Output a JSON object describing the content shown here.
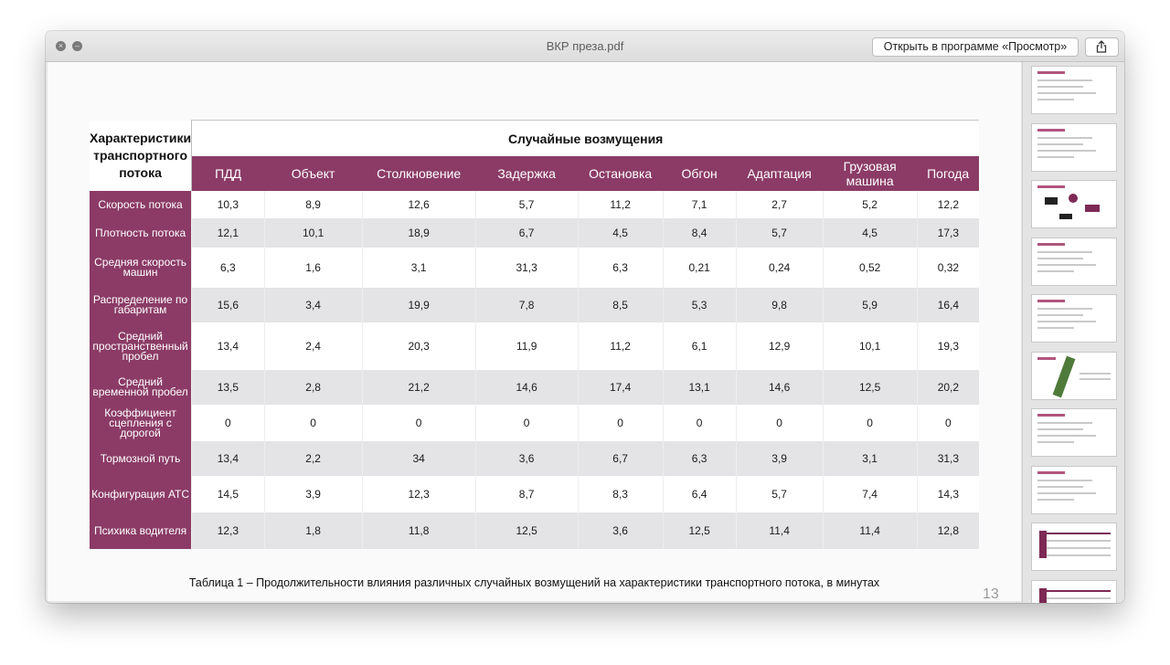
{
  "window": {
    "title": "ВКР преза.pdf",
    "open_button": "Открыть в программе «Просмотр»",
    "close_glyph": "×",
    "min_glyph": "–"
  },
  "slide": {
    "corner_header": "Характеристики транспортного потока",
    "group_header": "Случайные возмущения",
    "columns": [
      "ПДД",
      "Объект",
      "Столкновение",
      "Задержка",
      "Остановка",
      "Обгон",
      "Адаптация",
      "Грузовая машина",
      "Погода"
    ],
    "rows": [
      {
        "label": "Скорость потока",
        "values": [
          "10,3",
          "8,9",
          "12,6",
          "5,7",
          "11,2",
          "7,1",
          "2,7",
          "5,2",
          "12,2"
        ]
      },
      {
        "label": "Плотность потока",
        "values": [
          "12,1",
          "10,1",
          "18,9",
          "6,7",
          "4,5",
          "8,4",
          "5,7",
          "4,5",
          "17,3"
        ]
      },
      {
        "label": "Средняя скорость машин",
        "values": [
          "6,3",
          "1,6",
          "3,1",
          "31,3",
          "6,3",
          "0,21",
          "0,24",
          "0,52",
          "0,32"
        ]
      },
      {
        "label": "Распределение по габаритам",
        "values": [
          "15,6",
          "3,4",
          "19,9",
          "7,8",
          "8,5",
          "5,3",
          "9,8",
          "5,9",
          "16,4"
        ]
      },
      {
        "label": "Средний пространственный пробел",
        "values": [
          "13,4",
          "2,4",
          "20,3",
          "11,9",
          "11,2",
          "6,1",
          "12,9",
          "10,1",
          "19,3"
        ]
      },
      {
        "label": "Средний временной пробел",
        "values": [
          "13,5",
          "2,8",
          "21,2",
          "14,6",
          "17,4",
          "13,1",
          "14,6",
          "12,5",
          "20,2"
        ]
      },
      {
        "label": "Коэффициент сцепления с дорогой",
        "values": [
          "0",
          "0",
          "0",
          "0",
          "0",
          "0",
          "0",
          "0",
          "0"
        ]
      },
      {
        "label": "Тормозной путь",
        "values": [
          "13,4",
          "2,2",
          "34",
          "3,6",
          "6,7",
          "6,3",
          "3,9",
          "3,1",
          "31,3"
        ]
      },
      {
        "label": "Конфигурация АТС",
        "values": [
          "14,5",
          "3,9",
          "12,3",
          "8,7",
          "8,3",
          "6,4",
          "5,7",
          "7,4",
          "14,3"
        ]
      },
      {
        "label": "Психика водителя",
        "values": [
          "12,3",
          "1,8",
          "11,8",
          "12,5",
          "3,6",
          "12,5",
          "11,4",
          "11,4",
          "12,8"
        ]
      }
    ],
    "caption": "Таблица 1 – Продолжительности влияния различных случайных возмущений на характеристики транспортного потока, в минутах",
    "page_number": "13"
  },
  "colors": {
    "accent": "#8b3b66",
    "row_alt": "#e4e4e6"
  },
  "thumbnails_count": 10
}
